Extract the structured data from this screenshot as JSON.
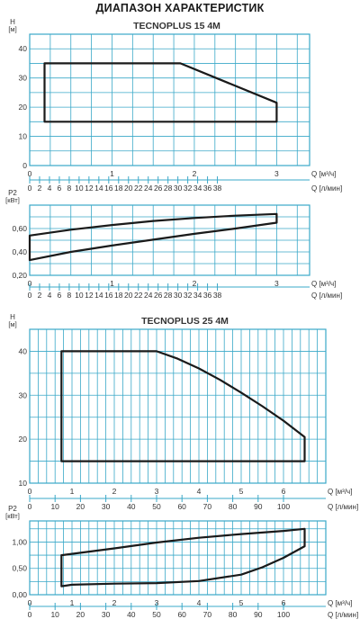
{
  "page_title": "ДИАПАЗОН ХАРАКТЕРИСТИК",
  "colors": {
    "grid": "#3aa8c8",
    "curve": "#1a1a1a",
    "text": "#333333"
  },
  "chart_data": [
    {
      "id": "tp15-head",
      "type": "line",
      "title": "TECNOPLUS 15 4M",
      "ylabel": "H [м]",
      "xlabel": "Q [м³/ч]",
      "x2label": "Q [л/мин]",
      "xlim": [
        0,
        3.4
      ],
      "ylim": [
        0,
        45
      ],
      "yticks": [
        0,
        10,
        20,
        30,
        40
      ],
      "xticks": [
        0,
        1,
        2,
        3
      ],
      "x2ticks": [
        0,
        2,
        4,
        6,
        8,
        10,
        12,
        14,
        16,
        18,
        20,
        22,
        24,
        26,
        28,
        30,
        32,
        34,
        36,
        38
      ],
      "grid": true,
      "series": [
        {
          "x": [
            0.18,
            1.83,
            3.0,
            3.0,
            0.18,
            0.18
          ],
          "y": [
            35,
            35,
            21.5,
            15,
            15,
            35
          ]
        }
      ]
    },
    {
      "id": "tp15-power",
      "type": "line",
      "ylabel": "P2 [кВт]",
      "xlabel": "Q [м³/ч]",
      "x2label": "Q [л/мин]",
      "xlim": [
        0,
        3.4
      ],
      "ylim": [
        0.2,
        0.8
      ],
      "yticks": [
        0.2,
        0.4,
        0.6
      ],
      "ytick_labels": [
        "0,20",
        "0,40",
        "0,60"
      ],
      "xticks": [
        0,
        1,
        2,
        3
      ],
      "x2ticks": [
        0,
        2,
        4,
        6,
        8,
        10,
        12,
        14,
        16,
        18,
        20,
        22,
        24,
        26,
        28,
        30,
        32,
        34,
        36,
        38
      ],
      "grid": true,
      "series": [
        {
          "x": [
            0,
            0.5,
            1.0,
            1.5,
            2.0,
            2.5,
            3.0,
            3.0,
            2.5,
            2.0,
            1.5,
            1.0,
            0.5,
            0,
            0
          ],
          "y": [
            0.54,
            0.59,
            0.63,
            0.665,
            0.69,
            0.71,
            0.725,
            0.65,
            0.6,
            0.555,
            0.505,
            0.455,
            0.4,
            0.33,
            0.54
          ]
        }
      ]
    },
    {
      "id": "tp25-head",
      "type": "line",
      "title": "TECNOPLUS 25 4M",
      "ylabel": "H [м]",
      "xlabel": "Q [м³/ч]",
      "x2label": "Q [л/мин]",
      "xlim": [
        0,
        7
      ],
      "ylim": [
        10,
        45
      ],
      "yticks": [
        10,
        20,
        30,
        40
      ],
      "xticks": [
        0,
        1,
        2,
        3,
        4,
        5,
        6
      ],
      "x2ticks": [
        0,
        10,
        20,
        30,
        40,
        50,
        60,
        70,
        80,
        90,
        100
      ],
      "grid": true,
      "series": [
        {
          "x": [
            0.75,
            3.0,
            3.5,
            4.0,
            4.5,
            5.0,
            5.5,
            6.0,
            6.5,
            6.5,
            0.75,
            0.75
          ],
          "y": [
            40,
            40,
            38.3,
            36.1,
            33.5,
            30.6,
            27.5,
            24.2,
            20.5,
            15,
            15,
            40
          ]
        }
      ]
    },
    {
      "id": "tp25-power",
      "type": "line",
      "ylabel": "P2 [кВт]",
      "xlabel": "Q [м³/ч]",
      "x2label": "Q [л/мин]",
      "xlim": [
        0,
        7
      ],
      "ylim": [
        0,
        1.4
      ],
      "yticks": [
        0,
        0.5,
        1.0
      ],
      "ytick_labels": [
        "0,00",
        "0,50",
        "1,00"
      ],
      "xticks": [
        0,
        1,
        2,
        3,
        4,
        5,
        6
      ],
      "x2ticks": [
        0,
        10,
        20,
        30,
        40,
        50,
        60,
        70,
        80,
        90,
        100
      ],
      "grid": true,
      "series": [
        {
          "x": [
            0.75,
            2.0,
            3.0,
            4.0,
            5.0,
            6.0,
            6.5,
            6.5,
            6.0,
            5.5,
            5.0,
            4.0,
            3.0,
            2.0,
            1.0,
            0.75,
            0.75
          ],
          "y": [
            0.75,
            0.88,
            0.99,
            1.08,
            1.15,
            1.21,
            1.25,
            0.92,
            0.7,
            0.52,
            0.38,
            0.26,
            0.22,
            0.21,
            0.19,
            0.16,
            0.75
          ]
        }
      ]
    }
  ]
}
